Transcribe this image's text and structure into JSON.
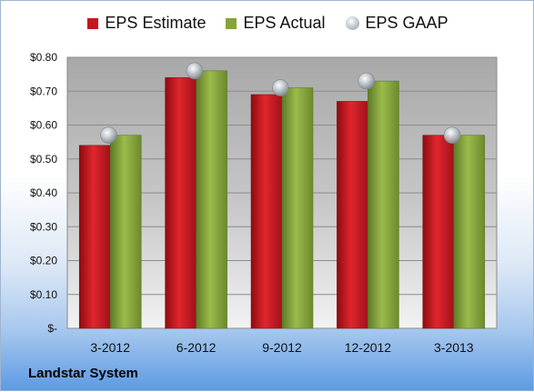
{
  "company": "Landstar System",
  "colors": {
    "estimate": "#c8161d",
    "actual": "#86a43b",
    "gaap": "#b8bec5"
  },
  "chart_data": {
    "type": "bar",
    "title": "",
    "xlabel": "",
    "ylabel": "",
    "categories": [
      "3-2012",
      "6-2012",
      "9-2012",
      "12-2012",
      "3-2013"
    ],
    "series": [
      {
        "name": "EPS Estimate",
        "type": "bar",
        "values": [
          0.54,
          0.74,
          0.69,
          0.67,
          0.57
        ]
      },
      {
        "name": "EPS Actual",
        "type": "bar",
        "values": [
          0.57,
          0.76,
          0.71,
          0.73,
          0.57
        ]
      },
      {
        "name": "EPS GAAP",
        "type": "scatter",
        "values": [
          0.57,
          0.76,
          0.71,
          0.73,
          0.57
        ]
      }
    ],
    "ylim": [
      0,
      0.8
    ],
    "yticks": [
      0,
      0.1,
      0.2,
      0.3,
      0.4,
      0.5,
      0.6,
      0.7,
      0.8
    ],
    "ytick_labels": [
      "$-",
      "$0.10",
      "$0.20",
      "$0.30",
      "$0.40",
      "$0.50",
      "$0.60",
      "$0.70",
      "$0.80"
    ],
    "grid": true,
    "legend_position": "top"
  }
}
